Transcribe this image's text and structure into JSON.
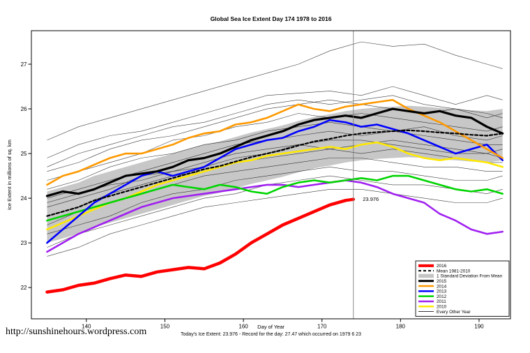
{
  "page": {
    "title": "Global Sea Ice Extent Day 174 1978 to 2016",
    "footer_url": "http://sunshinehours.wordpress.com",
    "footer_note": "Today's Ice Extent: 23.976  - Record for the day: 27.47 which occurred on 1979 6 23"
  },
  "chart_data": {
    "type": "line",
    "title": "Global Sea Ice Extent Day 174 1978 to 2016",
    "xlabel": "Day of Year",
    "ylabel": "Ice Extent in millions of sq. km",
    "xlim": [
      133,
      194
    ],
    "ylim": [
      21.3,
      27.75
    ],
    "xticks": [
      140,
      150,
      160,
      170,
      180,
      190
    ],
    "yticks": [
      22,
      23,
      24,
      25,
      26,
      27
    ],
    "grid": false,
    "legend_position": "bottom-right",
    "vline_x": 174,
    "vline_color": "#7f7f7f",
    "annotation": {
      "text": "23.976",
      "x": 175.2,
      "y": 23.976,
      "color": "#ff0000"
    },
    "band": {
      "label": "1 Standard Deviation From Mean",
      "fill": "#c4c4c4",
      "x": [
        135,
        137,
        139,
        141,
        143,
        145,
        147,
        149,
        151,
        153,
        155,
        157,
        159,
        161,
        163,
        165,
        167,
        169,
        171,
        173,
        175,
        177,
        179,
        181,
        183,
        185,
        187,
        189,
        191,
        193
      ],
      "upper": [
        24.15,
        24.25,
        24.35,
        24.5,
        24.6,
        24.7,
        24.8,
        24.9,
        25.0,
        25.1,
        25.2,
        25.27,
        25.37,
        25.47,
        25.55,
        25.63,
        25.73,
        25.82,
        25.88,
        25.95,
        26.0,
        26.03,
        26.05,
        26.07,
        26.05,
        26.02,
        26.0,
        25.97,
        25.95,
        26.0
      ],
      "lower": [
        23.0,
        23.1,
        23.2,
        23.35,
        23.45,
        23.55,
        23.65,
        23.75,
        23.85,
        23.95,
        24.05,
        24.12,
        24.22,
        24.32,
        24.4,
        24.48,
        24.58,
        24.67,
        24.73,
        24.8,
        24.85,
        24.88,
        24.9,
        24.92,
        24.9,
        24.87,
        24.85,
        24.82,
        24.8,
        24.85
      ]
    },
    "series": [
      {
        "name": "2010",
        "color": "#ffe800",
        "width": 2.6,
        "dash": null,
        "x": [
          135,
          137,
          139,
          141,
          143,
          145,
          147,
          149,
          151,
          153,
          155,
          157,
          159,
          161,
          163,
          165,
          167,
          169,
          171,
          173,
          175,
          177,
          179,
          181,
          183,
          185,
          187,
          189,
          191,
          193
        ],
        "values": [
          23.3,
          23.45,
          23.6,
          23.75,
          23.9,
          24.0,
          24.15,
          24.3,
          24.4,
          24.5,
          24.6,
          24.7,
          24.8,
          24.85,
          24.95,
          25.0,
          25.05,
          25.1,
          25.15,
          25.1,
          25.2,
          25.25,
          25.15,
          25.0,
          24.9,
          24.85,
          24.9,
          24.85,
          24.8,
          24.7
        ]
      },
      {
        "name": "2011",
        "color": "#a020f0",
        "width": 2.6,
        "dash": null,
        "x": [
          135,
          137,
          139,
          141,
          143,
          145,
          147,
          149,
          151,
          153,
          155,
          157,
          159,
          161,
          163,
          165,
          167,
          169,
          171,
          173,
          175,
          177,
          179,
          181,
          183,
          185,
          187,
          189,
          191,
          193
        ],
        "values": [
          22.8,
          23.0,
          23.2,
          23.35,
          23.5,
          23.65,
          23.8,
          23.9,
          24.0,
          24.05,
          24.1,
          24.15,
          24.2,
          24.25,
          24.3,
          24.3,
          24.25,
          24.3,
          24.35,
          24.4,
          24.35,
          24.25,
          24.1,
          24.0,
          23.9,
          23.65,
          23.5,
          23.3,
          23.2,
          23.25
        ]
      },
      {
        "name": "2012",
        "color": "#00d400",
        "width": 2.6,
        "dash": null,
        "x": [
          135,
          137,
          139,
          141,
          143,
          145,
          147,
          149,
          151,
          153,
          155,
          157,
          159,
          161,
          163,
          165,
          167,
          169,
          171,
          173,
          175,
          177,
          179,
          181,
          183,
          185,
          187,
          189,
          191,
          193
        ],
        "values": [
          23.5,
          23.6,
          23.7,
          23.8,
          23.9,
          24.0,
          24.1,
          24.2,
          24.3,
          24.25,
          24.2,
          24.3,
          24.25,
          24.15,
          24.1,
          24.25,
          24.35,
          24.4,
          24.35,
          24.4,
          24.45,
          24.4,
          24.5,
          24.5,
          24.4,
          24.3,
          24.2,
          24.15,
          24.2,
          24.1
        ]
      },
      {
        "name": "2013",
        "color": "#0000ff",
        "width": 2.6,
        "dash": null,
        "x": [
          135,
          137,
          139,
          141,
          143,
          145,
          147,
          149,
          151,
          153,
          155,
          157,
          159,
          161,
          163,
          165,
          167,
          169,
          171,
          173,
          175,
          177,
          179,
          181,
          183,
          185,
          187,
          189,
          191,
          193
        ],
        "values": [
          23.0,
          23.3,
          23.6,
          23.9,
          24.1,
          24.3,
          24.5,
          24.6,
          24.5,
          24.6,
          24.7,
          24.9,
          25.1,
          25.2,
          25.3,
          25.35,
          25.5,
          25.6,
          25.75,
          25.7,
          25.6,
          25.65,
          25.55,
          25.45,
          25.3,
          25.15,
          25.0,
          25.1,
          25.2,
          24.85
        ]
      },
      {
        "name": "2014",
        "color": "#ff9900",
        "width": 2.6,
        "dash": null,
        "x": [
          135,
          137,
          139,
          141,
          143,
          145,
          147,
          149,
          151,
          153,
          155,
          157,
          159,
          161,
          163,
          165,
          167,
          169,
          171,
          173,
          175,
          177,
          179,
          181,
          183,
          185,
          187,
          189,
          191,
          193
        ],
        "values": [
          24.3,
          24.5,
          24.6,
          24.75,
          24.9,
          25.0,
          25.0,
          25.1,
          25.2,
          25.35,
          25.45,
          25.5,
          25.65,
          25.7,
          25.8,
          25.95,
          26.1,
          26.0,
          25.95,
          26.05,
          26.1,
          26.15,
          26.2,
          26.0,
          25.85,
          25.7,
          25.5,
          25.3,
          25.1,
          24.9
        ]
      },
      {
        "name": "Mean 1981-2010",
        "color": "#000000",
        "width": 2.2,
        "dash": "4,3",
        "x": [
          135,
          137,
          139,
          141,
          143,
          145,
          147,
          149,
          151,
          153,
          155,
          157,
          159,
          161,
          163,
          165,
          167,
          169,
          171,
          173,
          175,
          177,
          179,
          181,
          183,
          185,
          187,
          189,
          191,
          193
        ],
        "values": [
          23.6,
          23.7,
          23.8,
          23.95,
          24.05,
          24.15,
          24.25,
          24.35,
          24.45,
          24.55,
          24.65,
          24.72,
          24.82,
          24.92,
          25.0,
          25.08,
          25.18,
          25.27,
          25.33,
          25.4,
          25.45,
          25.48,
          25.5,
          25.52,
          25.5,
          25.47,
          25.45,
          25.42,
          25.4,
          25.45
        ]
      },
      {
        "name": "2015",
        "color": "#000000",
        "width": 3.2,
        "dash": null,
        "x": [
          135,
          137,
          139,
          141,
          143,
          145,
          147,
          149,
          151,
          153,
          155,
          157,
          159,
          161,
          163,
          165,
          167,
          169,
          171,
          173,
          175,
          177,
          179,
          181,
          183,
          185,
          187,
          189,
          191,
          193
        ],
        "values": [
          24.05,
          24.15,
          24.1,
          24.2,
          24.35,
          24.5,
          24.55,
          24.6,
          24.7,
          24.85,
          24.9,
          25.0,
          25.15,
          25.3,
          25.4,
          25.5,
          25.65,
          25.75,
          25.8,
          25.85,
          25.8,
          25.9,
          26.0,
          25.95,
          25.9,
          25.95,
          25.85,
          25.8,
          25.6,
          25.45
        ]
      },
      {
        "name": "2016",
        "color": "#ff0000",
        "width": 4.5,
        "dash": null,
        "x": [
          135,
          137,
          139,
          141,
          143,
          145,
          147,
          149,
          151,
          153,
          155,
          157,
          159,
          161,
          163,
          165,
          167,
          169,
          171,
          173,
          174
        ],
        "values": [
          21.9,
          21.95,
          22.05,
          22.1,
          22.2,
          22.28,
          22.25,
          22.35,
          22.4,
          22.45,
          22.42,
          22.55,
          22.75,
          23.0,
          23.2,
          23.4,
          23.55,
          23.7,
          23.85,
          23.95,
          23.976
        ]
      }
    ],
    "every_other_year": {
      "label": "Every Other Year",
      "color": "#1a1a1a",
      "x": [
        135,
        139,
        143,
        147,
        151,
        155,
        159,
        163,
        167,
        171,
        175,
        179,
        183,
        187,
        191,
        193
      ],
      "series": [
        [
          25.3,
          25.6,
          25.8,
          26.0,
          26.2,
          26.4,
          26.6,
          26.8,
          27.0,
          27.3,
          27.5,
          27.4,
          27.45,
          27.2,
          27.0,
          26.9
        ],
        [
          24.9,
          25.2,
          25.4,
          25.5,
          25.7,
          25.9,
          26.1,
          26.3,
          26.35,
          26.4,
          26.3,
          26.5,
          26.3,
          26.1,
          26.3,
          26.2
        ],
        [
          24.6,
          24.8,
          25.1,
          25.3,
          25.4,
          25.6,
          25.8,
          26.0,
          26.1,
          26.2,
          26.1,
          26.0,
          25.9,
          26.0,
          25.8,
          25.9
        ],
        [
          24.4,
          24.6,
          24.8,
          25.0,
          25.3,
          25.4,
          25.6,
          25.7,
          25.9,
          25.8,
          25.9,
          25.8,
          25.7,
          25.6,
          25.5,
          25.6
        ],
        [
          24.2,
          24.4,
          24.7,
          24.9,
          25.0,
          25.2,
          25.3,
          25.5,
          25.6,
          25.7,
          25.6,
          25.5,
          25.6,
          25.4,
          25.3,
          25.4
        ],
        [
          24.0,
          24.2,
          24.4,
          24.6,
          24.8,
          25.0,
          25.2,
          25.3,
          25.4,
          25.5,
          25.4,
          25.5,
          25.4,
          25.3,
          25.2,
          25.2
        ],
        [
          23.8,
          24.0,
          24.2,
          24.5,
          24.6,
          24.8,
          25.0,
          25.1,
          25.2,
          25.3,
          25.3,
          25.2,
          25.1,
          25.0,
          25.0,
          25.1
        ],
        [
          23.6,
          23.8,
          24.1,
          24.3,
          24.5,
          24.6,
          24.8,
          24.9,
          25.0,
          25.1,
          25.0,
          25.1,
          25.0,
          24.9,
          24.8,
          24.8
        ],
        [
          23.4,
          23.7,
          23.9,
          24.1,
          24.3,
          24.5,
          24.6,
          24.7,
          24.8,
          24.9,
          24.9,
          24.8,
          24.7,
          24.7,
          24.6,
          24.6
        ],
        [
          23.2,
          23.4,
          23.6,
          23.9,
          24.1,
          24.2,
          24.4,
          24.5,
          24.6,
          24.7,
          24.6,
          24.6,
          24.5,
          24.4,
          24.4,
          24.5
        ],
        [
          22.9,
          23.2,
          23.4,
          23.6,
          23.8,
          24.0,
          24.1,
          24.3,
          24.4,
          24.5,
          24.4,
          24.3,
          24.3,
          24.2,
          24.1,
          24.2
        ],
        [
          22.7,
          22.9,
          23.2,
          23.4,
          23.6,
          23.8,
          23.9,
          24.0,
          24.1,
          24.2,
          24.2,
          24.1,
          24.0,
          23.9,
          23.9,
          24.0
        ],
        [
          23.9,
          24.1,
          24.3,
          24.4,
          24.6,
          24.7,
          24.9,
          25.0,
          25.2,
          25.1,
          25.2,
          25.3,
          25.2,
          25.1,
          25.0,
          24.9
        ],
        [
          24.7,
          25.0,
          25.2,
          25.4,
          25.6,
          25.7,
          25.9,
          26.1,
          26.2,
          26.1,
          26.2,
          26.3,
          26.1,
          26.0,
          25.9,
          25.8
        ]
      ]
    },
    "legend": [
      {
        "label": "2016",
        "color": "#ff0000",
        "lw": 4,
        "dash": null,
        "band": false
      },
      {
        "label": "Mean 1981-2010",
        "color": "#000000",
        "lw": 2,
        "dash": "4,3",
        "band": false
      },
      {
        "label": "1 Standard Deviation From Mean",
        "color": "#c4c4c4",
        "lw": 6,
        "dash": null,
        "band": true
      },
      {
        "label": "2015",
        "color": "#000000",
        "lw": 3,
        "dash": null,
        "band": false
      },
      {
        "label": "2014",
        "color": "#ff9900",
        "lw": 2.5,
        "dash": null,
        "band": false
      },
      {
        "label": "2013",
        "color": "#0000ff",
        "lw": 2.5,
        "dash": null,
        "band": false
      },
      {
        "label": "2012",
        "color": "#00d400",
        "lw": 2.5,
        "dash": null,
        "band": false
      },
      {
        "label": "2011",
        "color": "#a020f0",
        "lw": 2.5,
        "dash": null,
        "band": false
      },
      {
        "label": "2010",
        "color": "#ffe800",
        "lw": 2.5,
        "dash": null,
        "band": false
      },
      {
        "label": "Every Other Year",
        "color": "#1a1a1a",
        "lw": 0.8,
        "dash": null,
        "band": false
      }
    ]
  }
}
